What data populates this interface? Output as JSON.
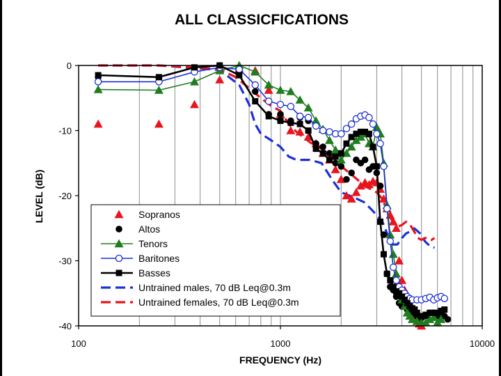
{
  "chart_data": {
    "type": "line",
    "title": "ALL CLASSICFICATIONS",
    "xlabel": "FREQUENCY (Hz)",
    "ylabel": "LEVEL (dB)",
    "x_scale": "log",
    "xlim": [
      100,
      10000
    ],
    "ylim": [
      -40,
      0
    ],
    "x_ticks": [
      100,
      1000,
      10000
    ],
    "x_tick_labels": [
      "100",
      "1000",
      "10000"
    ],
    "y_ticks": [
      0,
      -10,
      -20,
      -30,
      -40
    ],
    "y_tick_labels": [
      "0",
      "-10",
      "-20",
      "-30",
      "-40"
    ],
    "grid": "vertical log gridlines",
    "legend_position": "lower-left",
    "series": [
      {
        "name": "Sopranos",
        "color": "#e8141e",
        "marker": "triangle",
        "line": "none",
        "points": [
          [
            125,
            -9
          ],
          [
            250,
            -9
          ],
          [
            375,
            -6
          ],
          [
            500,
            -2.2
          ],
          [
            625,
            -0.5
          ],
          [
            750,
            -0.8
          ],
          [
            875,
            -3.8
          ],
          [
            1000,
            -7.5
          ],
          [
            1125,
            -10
          ],
          [
            1250,
            -10.2
          ],
          [
            1375,
            -11
          ],
          [
            1500,
            -12
          ],
          [
            1625,
            -13.5
          ],
          [
            1750,
            -14.5
          ],
          [
            1875,
            -16
          ],
          [
            2000,
            -17.5
          ],
          [
            2125,
            -20
          ],
          [
            2250,
            -20.5
          ],
          [
            2375,
            -19.5
          ],
          [
            2500,
            -18.5
          ],
          [
            2625,
            -18
          ],
          [
            2750,
            -18.3
          ],
          [
            2875,
            -17.8
          ],
          [
            3000,
            -18
          ],
          [
            3125,
            -19
          ],
          [
            3250,
            -20.5
          ],
          [
            3375,
            -22
          ],
          [
            3500,
            -23
          ],
          [
            3625,
            -24
          ],
          [
            3750,
            -25
          ],
          [
            3875,
            -30
          ],
          [
            4000,
            -33
          ],
          [
            4125,
            -34.5
          ],
          [
            4250,
            -35.5
          ],
          [
            4375,
            -36.5
          ],
          [
            4500,
            -37.5
          ],
          [
            4625,
            -38.5
          ],
          [
            4750,
            -39.3
          ],
          [
            4875,
            -39.7
          ],
          [
            5000,
            -40
          ]
        ]
      },
      {
        "name": "Altos",
        "color": "#000000",
        "marker": "filled-circle",
        "line": "none",
        "points": [
          [
            125,
            -1.8
          ],
          [
            250,
            -2
          ],
          [
            375,
            -0.6
          ],
          [
            500,
            0
          ],
          [
            625,
            -1
          ],
          [
            750,
            -4
          ],
          [
            875,
            -7.5
          ],
          [
            1000,
            -7.5
          ],
          [
            1125,
            -8.5
          ],
          [
            1250,
            -8
          ],
          [
            1375,
            -8.5
          ],
          [
            1500,
            -12
          ],
          [
            1625,
            -12.5
          ],
          [
            1750,
            -13.5
          ],
          [
            1875,
            -15
          ],
          [
            2000,
            -15.5
          ],
          [
            2125,
            -17.5
          ],
          [
            2250,
            -16.5
          ],
          [
            2375,
            -14.5
          ],
          [
            2500,
            -15
          ],
          [
            2625,
            -14.5
          ],
          [
            2750,
            -16
          ],
          [
            2875,
            -15.5
          ],
          [
            3000,
            -16.5
          ],
          [
            3125,
            -18.5
          ],
          [
            3250,
            -26
          ],
          [
            3375,
            -32
          ],
          [
            3500,
            -34
          ],
          [
            3625,
            -34.5
          ],
          [
            3750,
            -35.5
          ],
          [
            3875,
            -36.5
          ],
          [
            4000,
            -37
          ],
          [
            4250,
            -37.5
          ],
          [
            4500,
            -38
          ],
          [
            4750,
            -38.5
          ],
          [
            5000,
            -38.8
          ],
          [
            5250,
            -38.5
          ],
          [
            5500,
            -38
          ],
          [
            5750,
            -38
          ],
          [
            6000,
            -38.5
          ],
          [
            6250,
            -38.3
          ],
          [
            6500,
            -38.5
          ],
          [
            6750,
            -39
          ]
        ]
      },
      {
        "name": "Tenors",
        "color": "#1f7d1f",
        "marker": "triangle",
        "line": "solid",
        "points": [
          [
            125,
            -3.7
          ],
          [
            250,
            -3.8
          ],
          [
            375,
            -2.5
          ],
          [
            500,
            -0.8
          ],
          [
            625,
            0
          ],
          [
            750,
            -1
          ],
          [
            875,
            -3
          ],
          [
            1000,
            -3.8
          ],
          [
            1125,
            -4
          ],
          [
            1250,
            -5.3
          ],
          [
            1375,
            -6.5
          ],
          [
            1500,
            -8.5
          ],
          [
            1625,
            -9.8
          ],
          [
            1750,
            -11.5
          ],
          [
            1875,
            -13
          ],
          [
            2000,
            -14.5
          ],
          [
            2125,
            -13.5
          ],
          [
            2250,
            -12.5
          ],
          [
            2375,
            -11.5
          ],
          [
            2500,
            -11
          ],
          [
            2625,
            -10.5
          ],
          [
            2750,
            -12
          ],
          [
            2875,
            -12.5
          ],
          [
            3000,
            -9.5
          ],
          [
            3125,
            -10.5
          ],
          [
            3250,
            -15
          ],
          [
            3375,
            -21.5
          ],
          [
            3500,
            -26
          ],
          [
            3625,
            -29
          ],
          [
            3750,
            -32
          ],
          [
            3875,
            -34.5
          ],
          [
            4000,
            -36
          ],
          [
            4125,
            -37
          ],
          [
            4250,
            -38
          ],
          [
            4375,
            -38.5
          ],
          [
            4500,
            -39
          ],
          [
            4750,
            -39.3
          ],
          [
            5000,
            -39.5
          ],
          [
            5250,
            -39.5
          ],
          [
            5500,
            -39
          ],
          [
            5750,
            -38.7
          ],
          [
            6000,
            -39.5
          ],
          [
            6250,
            -39
          ]
        ]
      },
      {
        "name": "Baritones",
        "color": "#1c2fd6",
        "marker": "open-circle",
        "line": "solid",
        "points": [
          [
            125,
            -2.5
          ],
          [
            250,
            -2.5
          ],
          [
            375,
            -1
          ],
          [
            500,
            -0.3
          ],
          [
            625,
            -0.6
          ],
          [
            750,
            -3
          ],
          [
            875,
            -5.5
          ],
          [
            1000,
            -6
          ],
          [
            1125,
            -6.3
          ],
          [
            1250,
            -7.8
          ],
          [
            1375,
            -8
          ],
          [
            1500,
            -9.3
          ],
          [
            1625,
            -10
          ],
          [
            1750,
            -10.2
          ],
          [
            1875,
            -10.5
          ],
          [
            2000,
            -10.5
          ],
          [
            2125,
            -9.7
          ],
          [
            2250,
            -9
          ],
          [
            2375,
            -8.2
          ],
          [
            2500,
            -7.8
          ],
          [
            2625,
            -7.6
          ],
          [
            2750,
            -8
          ],
          [
            2875,
            -9
          ],
          [
            3000,
            -10.5
          ],
          [
            3125,
            -12
          ],
          [
            3250,
            -15.5
          ],
          [
            3375,
            -22
          ],
          [
            3500,
            -27
          ],
          [
            3625,
            -31
          ],
          [
            3750,
            -33
          ],
          [
            3875,
            -34
          ],
          [
            4000,
            -34.5
          ],
          [
            4125,
            -35
          ],
          [
            4250,
            -35.5
          ],
          [
            4375,
            -35.8
          ],
          [
            4500,
            -36
          ],
          [
            4750,
            -36
          ],
          [
            5000,
            -36
          ],
          [
            5250,
            -35.8
          ],
          [
            5500,
            -35.6
          ],
          [
            5750,
            -36
          ],
          [
            6000,
            -35.7
          ],
          [
            6250,
            -35.5
          ],
          [
            6500,
            -35.8
          ]
        ]
      },
      {
        "name": "Basses",
        "color": "#000000",
        "marker": "filled-square",
        "line": "solid",
        "points": [
          [
            125,
            -1.5
          ],
          [
            250,
            -1.8
          ],
          [
            375,
            -0.3
          ],
          [
            500,
            0
          ],
          [
            625,
            -1.5
          ],
          [
            750,
            -5.5
          ],
          [
            875,
            -7.8
          ],
          [
            1000,
            -8.5
          ],
          [
            1125,
            -8.8
          ],
          [
            1250,
            -9
          ],
          [
            1375,
            -10
          ],
          [
            1500,
            -12.8
          ],
          [
            1625,
            -13.5
          ],
          [
            1750,
            -14.5
          ],
          [
            1875,
            -14
          ],
          [
            2000,
            -13.5
          ],
          [
            2125,
            -12
          ],
          [
            2250,
            -11
          ],
          [
            2375,
            -10.5
          ],
          [
            2500,
            -10.2
          ],
          [
            2625,
            -10.2
          ],
          [
            2750,
            -10.5
          ],
          [
            2875,
            -12.5
          ],
          [
            3000,
            -15.5
          ],
          [
            3125,
            -24
          ],
          [
            3250,
            -29
          ],
          [
            3375,
            -32
          ],
          [
            3500,
            -33
          ],
          [
            3625,
            -34
          ],
          [
            3750,
            -34.7
          ],
          [
            3875,
            -35
          ],
          [
            4000,
            -35.5
          ],
          [
            4125,
            -36
          ],
          [
            4250,
            -36.5
          ],
          [
            4375,
            -37
          ],
          [
            4500,
            -37.3
          ],
          [
            4625,
            -37.5
          ],
          [
            4750,
            -38
          ],
          [
            5000,
            -38.5
          ],
          [
            5250,
            -38.3
          ],
          [
            5500,
            -38
          ],
          [
            5750,
            -38
          ],
          [
            6000,
            -38
          ],
          [
            6250,
            -37.7
          ],
          [
            6500,
            -37.5
          ]
        ]
      },
      {
        "name": "Untrained males, 70 dB Leq@0.3m",
        "color": "#1c2fd6",
        "marker": "none",
        "line": "dashed",
        "points": [
          [
            125,
            0
          ],
          [
            250,
            0
          ],
          [
            375,
            -0.4
          ],
          [
            500,
            -0.7
          ],
          [
            625,
            -3
          ],
          [
            700,
            -6
          ],
          [
            750,
            -9
          ],
          [
            800,
            -10.5
          ],
          [
            850,
            -11
          ],
          [
            900,
            -11.5
          ],
          [
            1000,
            -12.5
          ],
          [
            1100,
            -14
          ],
          [
            1200,
            -14.5
          ],
          [
            1400,
            -14.5
          ],
          [
            1600,
            -15
          ],
          [
            1800,
            -17.5
          ],
          [
            2000,
            -19.5
          ],
          [
            2200,
            -20
          ],
          [
            2400,
            -20.5
          ],
          [
            2600,
            -21
          ],
          [
            2800,
            -22
          ],
          [
            3000,
            -23
          ],
          [
            3200,
            -24
          ],
          [
            3400,
            -26
          ],
          [
            3600,
            -27.5
          ],
          [
            3800,
            -27.5
          ],
          [
            4000,
            -26.5
          ],
          [
            4200,
            -25.8
          ],
          [
            4400,
            -25.5
          ],
          [
            4600,
            -25
          ],
          [
            4800,
            -25.5
          ],
          [
            5000,
            -26
          ],
          [
            5200,
            -27
          ],
          [
            5400,
            -27.5
          ],
          [
            5600,
            -27.8
          ],
          [
            5800,
            -28
          ]
        ]
      },
      {
        "name": "Untrained females, 70 dB Leq@0.3m",
        "color": "#e8141e",
        "marker": "none",
        "line": "dashed",
        "points": [
          [
            125,
            0
          ],
          [
            250,
            0
          ],
          [
            375,
            -0.3
          ],
          [
            500,
            -0.6
          ],
          [
            600,
            -1.8
          ],
          [
            700,
            -3.5
          ],
          [
            800,
            -5
          ],
          [
            900,
            -6.2
          ],
          [
            1000,
            -7
          ],
          [
            1100,
            -9
          ],
          [
            1200,
            -10.2
          ],
          [
            1300,
            -11
          ],
          [
            1400,
            -11.8
          ],
          [
            1600,
            -12.8
          ],
          [
            1800,
            -14
          ],
          [
            2000,
            -15.5
          ],
          [
            2200,
            -16.5
          ],
          [
            2400,
            -17.5
          ],
          [
            2600,
            -18.5
          ],
          [
            2800,
            -19
          ],
          [
            3000,
            -19.5
          ],
          [
            3200,
            -20.5
          ],
          [
            3400,
            -22.5
          ],
          [
            3600,
            -24
          ],
          [
            3800,
            -24.8
          ],
          [
            4000,
            -24.5
          ],
          [
            4200,
            -24
          ],
          [
            4400,
            -24.5
          ],
          [
            4600,
            -25.5
          ],
          [
            4800,
            -26.5
          ],
          [
            5000,
            -26.8
          ],
          [
            5200,
            -26.5
          ],
          [
            5400,
            -26.5
          ],
          [
            5600,
            -26.8
          ],
          [
            5800,
            -26.5
          ]
        ]
      }
    ]
  }
}
